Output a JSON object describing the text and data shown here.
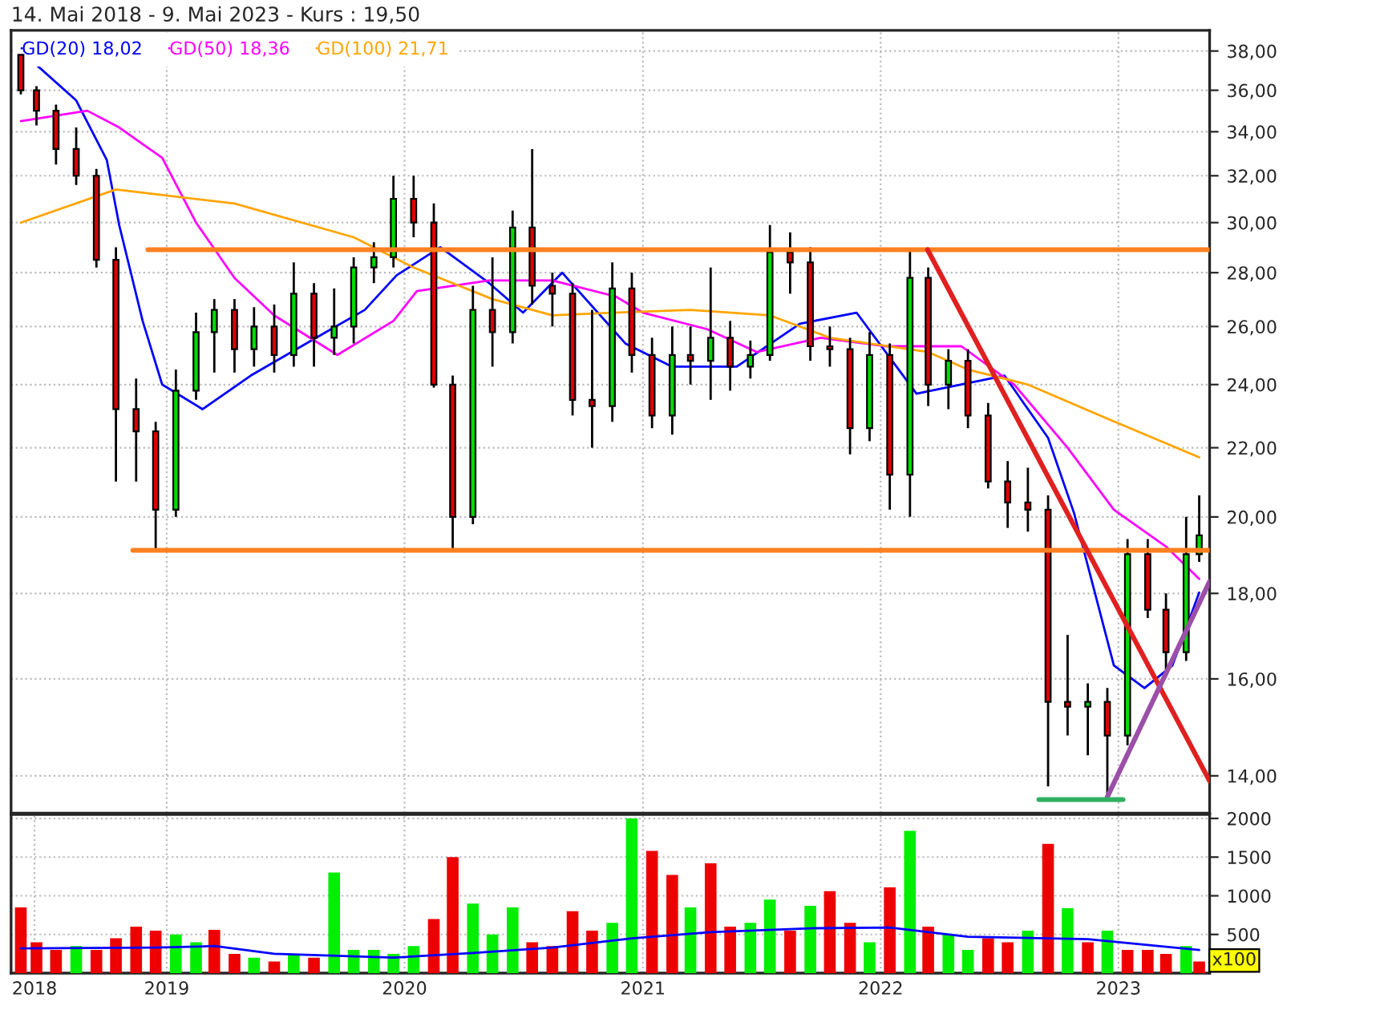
{
  "chart_data": [
    {
      "type": "candlestick",
      "title": "14. Mai 2018 - 9. Mai 2023 - Kurs : 19,50",
      "log": "y",
      "grid": true,
      "legend": "top left",
      "tick_labels": "y",
      "xlim": [
        "2018-05-07",
        "2023-05-21"
      ],
      "xticks": [
        {
          "value": "2019-01-01",
          "label": null
        },
        {
          "value": "2020-01-01",
          "label": null
        },
        {
          "value": "2021-01-01",
          "label": null
        },
        {
          "value": "2022-01-01",
          "label": null
        },
        {
          "value": "2023-01-01",
          "label": null
        }
      ],
      "ylim": [
        13.3,
        39.1
      ],
      "yticks": [
        {
          "value": 14,
          "label": "14,00"
        },
        {
          "value": 16,
          "label": "16,00"
        },
        {
          "value": 18,
          "label": "18,00"
        },
        {
          "value": 20,
          "label": "20,00"
        },
        {
          "value": 22,
          "label": "22,00"
        },
        {
          "value": 24,
          "label": "24,00"
        },
        {
          "value": 26,
          "label": "26,00"
        },
        {
          "value": 28,
          "label": "28,00"
        },
        {
          "value": 30,
          "label": "30,00"
        },
        {
          "value": 32,
          "label": "32,00"
        },
        {
          "value": 34,
          "label": "34,00"
        },
        {
          "value": 36,
          "label": "36,00"
        },
        {
          "value": 38,
          "label": "38,00"
        }
      ],
      "x": [
        "2018-05-22",
        "2018-06-15",
        "2018-07-15",
        "2018-08-15",
        "2018-09-15",
        "2018-10-15",
        "2018-11-15",
        "2018-12-15",
        "2019-01-15",
        "2019-02-15",
        "2019-03-15",
        "2019-04-15",
        "2019-05-15",
        "2019-06-15",
        "2019-07-15",
        "2019-08-15",
        "2019-09-15",
        "2019-10-15",
        "2019-11-15",
        "2019-12-15",
        "2020-01-15",
        "2020-02-15",
        "2020-03-15",
        "2020-04-15",
        "2020-05-15",
        "2020-06-15",
        "2020-07-15",
        "2020-08-15",
        "2020-09-15",
        "2020-10-15",
        "2020-11-15",
        "2020-12-15",
        "2021-01-15",
        "2021-02-15",
        "2021-03-15",
        "2021-04-15",
        "2021-05-15",
        "2021-06-15",
        "2021-07-15",
        "2021-08-15",
        "2021-09-15",
        "2021-10-15",
        "2021-11-15",
        "2021-12-15",
        "2022-01-15",
        "2022-02-15",
        "2022-03-15",
        "2022-04-15",
        "2022-05-15",
        "2022-06-15",
        "2022-07-15",
        "2022-08-15",
        "2022-09-15",
        "2022-10-15",
        "2022-11-15",
        "2022-12-15",
        "2023-01-15",
        "2023-02-15",
        "2023-03-15",
        "2023-04-15",
        "2023-05-05"
      ],
      "ohlc": [
        [
          37.8,
          38.0,
          35.8,
          36.0
        ],
        [
          36.0,
          36.2,
          34.3,
          35.0
        ],
        [
          35.0,
          35.3,
          32.5,
          33.2
        ],
        [
          33.2,
          34.2,
          31.6,
          32.0
        ],
        [
          32.0,
          32.3,
          28.2,
          28.5
        ],
        [
          28.5,
          29.0,
          21.0,
          23.2
        ],
        [
          23.2,
          24.2,
          21.0,
          22.5
        ],
        [
          22.5,
          22.8,
          19.1,
          20.2
        ],
        [
          20.2,
          24.5,
          20.0,
          23.8
        ],
        [
          23.8,
          26.5,
          23.5,
          25.8
        ],
        [
          25.8,
          27.0,
          24.4,
          26.6
        ],
        [
          26.6,
          27.0,
          24.4,
          25.2
        ],
        [
          25.2,
          26.7,
          24.6,
          26.0
        ],
        [
          26.0,
          26.8,
          24.4,
          25.0
        ],
        [
          25.0,
          28.4,
          24.6,
          27.2
        ],
        [
          27.2,
          27.6,
          24.6,
          25.6
        ],
        [
          25.6,
          27.4,
          25.0,
          26.0
        ],
        [
          26.0,
          28.6,
          25.4,
          28.2
        ],
        [
          28.2,
          29.2,
          27.6,
          28.6
        ],
        [
          28.6,
          32.0,
          28.2,
          31.0
        ],
        [
          31.0,
          32.0,
          29.4,
          30.0
        ],
        [
          30.0,
          30.8,
          23.9,
          24.0
        ],
        [
          24.0,
          24.3,
          19.1,
          20.0
        ],
        [
          20.0,
          27.5,
          19.8,
          26.6
        ],
        [
          26.6,
          28.6,
          24.6,
          25.8
        ],
        [
          25.8,
          30.5,
          25.4,
          29.8
        ],
        [
          29.8,
          33.2,
          26.8,
          27.5
        ],
        [
          27.5,
          28.0,
          26.0,
          27.2
        ],
        [
          27.2,
          27.6,
          23.0,
          23.5
        ],
        [
          23.5,
          26.6,
          22.0,
          23.3
        ],
        [
          23.3,
          28.4,
          22.8,
          27.4
        ],
        [
          27.4,
          28.0,
          24.4,
          25.0
        ],
        [
          25.0,
          25.6,
          22.6,
          23.0
        ],
        [
          23.0,
          26.0,
          22.4,
          25.0
        ],
        [
          25.0,
          26.0,
          24.0,
          24.8
        ],
        [
          24.8,
          28.2,
          23.5,
          25.6
        ],
        [
          25.6,
          26.2,
          23.8,
          24.6
        ],
        [
          24.6,
          25.5,
          24.2,
          25.0
        ],
        [
          25.0,
          29.9,
          24.8,
          28.8
        ],
        [
          28.8,
          29.6,
          27.2,
          28.4
        ],
        [
          28.4,
          29.0,
          24.8,
          25.3
        ],
        [
          25.3,
          26.0,
          24.6,
          25.2
        ],
        [
          25.2,
          25.6,
          21.8,
          22.6
        ],
        [
          22.6,
          25.8,
          22.2,
          25.0
        ],
        [
          25.0,
          25.4,
          20.2,
          21.2
        ],
        [
          21.2,
          28.9,
          20.0,
          27.8
        ],
        [
          27.8,
          28.2,
          23.3,
          24.0
        ],
        [
          24.0,
          25.2,
          23.2,
          24.8
        ],
        [
          24.8,
          25.2,
          22.6,
          23.0
        ],
        [
          23.0,
          23.4,
          20.8,
          21.0
        ],
        [
          21.0,
          21.6,
          19.7,
          20.4
        ],
        [
          20.4,
          21.4,
          19.6,
          20.2
        ],
        [
          20.2,
          20.6,
          13.8,
          15.5
        ],
        [
          15.5,
          17.0,
          14.8,
          15.4
        ],
        [
          15.4,
          15.9,
          14.4,
          15.5
        ],
        [
          15.5,
          15.8,
          13.6,
          14.8
        ],
        [
          14.8,
          19.4,
          14.6,
          19.0
        ],
        [
          19.0,
          19.4,
          17.4,
          17.6
        ],
        [
          17.6,
          18.0,
          16.2,
          16.6
        ],
        [
          16.6,
          20.0,
          16.4,
          19.0
        ],
        [
          19.0,
          20.6,
          18.8,
          19.5
        ]
      ],
      "series": [
        {
          "type": "line",
          "name": "GD(20) 18,02",
          "color": "#0000ff",
          "x": [
            "2018-05-22",
            "2018-08-15",
            "2018-10-01",
            "2018-10-20",
            "2018-11-25",
            "2018-12-25",
            "2019-02-25",
            "2019-05-10",
            "2019-09-10",
            "2019-11-01",
            "2019-12-20",
            "2020-02-25",
            "2020-05-10",
            "2020-07-01",
            "2020-08-30",
            "2020-12-05",
            "2021-02-15",
            "2021-05-25",
            "2021-08-30",
            "2021-11-25",
            "2022-02-25",
            "2022-07-10",
            "2022-09-15",
            "2022-10-25",
            "2022-12-25",
            "2023-02-10",
            "2023-03-25",
            "2023-05-05"
          ],
          "values": [
            38.0,
            35.5,
            32.7,
            29.9,
            26.2,
            24.0,
            23.2,
            24.3,
            25.9,
            26.6,
            27.9,
            29.0,
            27.6,
            26.5,
            28.0,
            25.4,
            24.6,
            24.6,
            26.1,
            26.5,
            23.7,
            24.3,
            22.3,
            20.1,
            16.3,
            15.8,
            16.3,
            18.02
          ]
        },
        {
          "type": "line",
          "name": "GD(50) 18,36",
          "color": "#ff00ff",
          "x": [
            "2018-05-22",
            "2018-09-01",
            "2018-10-20",
            "2018-12-25",
            "2019-02-15",
            "2019-04-15",
            "2019-06-15",
            "2019-09-20",
            "2019-12-15",
            "2020-01-20",
            "2020-05-10",
            "2020-08-15",
            "2020-11-20",
            "2021-01-01",
            "2021-04-10",
            "2021-06-25",
            "2021-10-01",
            "2022-01-10",
            "2022-05-05",
            "2022-07-25",
            "2022-10-15",
            "2022-12-25",
            "2023-03-15",
            "2023-05-05"
          ],
          "values": [
            34.5,
            35.0,
            34.2,
            32.8,
            30.0,
            27.8,
            26.4,
            25.0,
            26.2,
            27.3,
            27.7,
            27.7,
            27.1,
            26.5,
            25.9,
            25.1,
            25.6,
            25.3,
            25.3,
            24.0,
            22.0,
            20.2,
            19.2,
            18.36
          ]
        },
        {
          "type": "line",
          "name": "GD(100) 21,71",
          "color": "#ffa500",
          "x": [
            "2018-05-22",
            "2018-10-15",
            "2019-04-15",
            "2019-10-15",
            "2020-01-15",
            "2020-05-15",
            "2020-08-15",
            "2020-11-15",
            "2021-03-15",
            "2021-07-15",
            "2021-10-15",
            "2022-03-15",
            "2022-05-15",
            "2022-08-15",
            "2022-12-15",
            "2023-05-05"
          ],
          "values": [
            30.0,
            31.4,
            30.8,
            29.4,
            28.2,
            27.0,
            26.4,
            26.5,
            26.6,
            26.4,
            25.6,
            25.1,
            24.5,
            24.0,
            22.9,
            21.71
          ]
        },
        {
          "type": "line",
          "color": "#ff8020",
          "x": [
            "2018-12-03",
            "2023-05-21"
          ],
          "values": [
            28.9,
            28.9
          ]
        },
        {
          "type": "line",
          "color": "#ff8020",
          "x": [
            "2018-11-10",
            "2023-05-21"
          ],
          "values": [
            19.1,
            19.1
          ]
        },
        {
          "type": "line",
          "color": "#e02020",
          "x": [
            "2022-03-14",
            "2023-05-21"
          ],
          "values": [
            28.9,
            13.9
          ]
        },
        {
          "type": "line",
          "color": "#9b4fa8",
          "x": [
            "2022-12-15",
            "2023-05-21"
          ],
          "values": [
            13.6,
            18.3
          ]
        },
        {
          "type": "line",
          "color": "#30b060",
          "x": [
            "2022-09-01",
            "2023-01-08"
          ],
          "values": [
            13.55,
            13.55
          ]
        }
      ]
    },
    {
      "type": "bar",
      "grid": true,
      "annotations": [
        "x100"
      ],
      "xlim": [
        "2018-05-07",
        "2023-05-21"
      ],
      "xticks": [
        {
          "value": "2018-06-12",
          "label": "2018"
        },
        {
          "value": "2019-01-01",
          "label": "2019"
        },
        {
          "value": "2020-01-01",
          "label": "2020"
        },
        {
          "value": "2021-01-01",
          "label": "2021"
        },
        {
          "value": "2022-01-01",
          "label": "2022"
        },
        {
          "value": "2023-01-01",
          "label": "2023"
        }
      ],
      "ylim": [
        0,
        2050
      ],
      "yticks": [
        500,
        1000,
        1500,
        2000
      ],
      "x": [
        "2018-05-22",
        "2018-06-15",
        "2018-07-15",
        "2018-08-15",
        "2018-09-15",
        "2018-10-15",
        "2018-11-15",
        "2018-12-15",
        "2019-01-15",
        "2019-02-15",
        "2019-03-15",
        "2019-04-15",
        "2019-05-15",
        "2019-06-15",
        "2019-07-15",
        "2019-08-15",
        "2019-09-15",
        "2019-10-15",
        "2019-11-15",
        "2019-12-15",
        "2020-01-15",
        "2020-02-15",
        "2020-03-15",
        "2020-04-15",
        "2020-05-15",
        "2020-06-15",
        "2020-07-15",
        "2020-08-15",
        "2020-09-15",
        "2020-10-15",
        "2020-11-15",
        "2020-12-15",
        "2021-01-15",
        "2021-02-15",
        "2021-03-15",
        "2021-04-15",
        "2021-05-15",
        "2021-06-15",
        "2021-07-15",
        "2021-08-15",
        "2021-09-15",
        "2021-10-15",
        "2021-11-15",
        "2021-12-15",
        "2022-01-15",
        "2022-02-15",
        "2022-03-15",
        "2022-04-15",
        "2022-05-15",
        "2022-06-15",
        "2022-07-15",
        "2022-08-15",
        "2022-09-15",
        "2022-10-15",
        "2022-11-15",
        "2022-12-15",
        "2023-01-15",
        "2023-02-15",
        "2023-03-15",
        "2023-04-15",
        "2023-05-05"
      ],
      "values": [
        850,
        400,
        300,
        350,
        300,
        450,
        600,
        550,
        500,
        400,
        560,
        250,
        200,
        150,
        250,
        200,
        1300,
        300,
        300,
        250,
        350,
        700,
        1500,
        900,
        500,
        850,
        400,
        350,
        800,
        550,
        650,
        2000,
        1580,
        1270,
        850,
        1420,
        600,
        650,
        950,
        550,
        870,
        1060,
        650,
        400,
        1110,
        1840,
        600,
        500,
        300,
        450,
        400,
        550,
        1670,
        840,
        400,
        550,
        300,
        300,
        250,
        350,
        150
      ],
      "colors": [
        "#ee0000",
        "#ee0000",
        "#ee0000",
        "#00ee00",
        "#ee0000",
        "#ee0000",
        "#ee0000",
        "#ee0000",
        "#00ee00",
        "#00ee00",
        "#ee0000",
        "#ee0000",
        "#00ee00",
        "#ee0000",
        "#00ee00",
        "#ee0000",
        "#00ee00",
        "#00ee00",
        "#00ee00",
        "#00ee00",
        "#00ee00",
        "#ee0000",
        "#ee0000",
        "#00ee00",
        "#00ee00",
        "#00ee00",
        "#ee0000",
        "#ee0000",
        "#ee0000",
        "#ee0000",
        "#00ee00",
        "#00ee00",
        "#ee0000",
        "#ee0000",
        "#00ee00",
        "#ee0000",
        "#ee0000",
        "#00ee00",
        "#00ee00",
        "#ee0000",
        "#00ee00",
        "#ee0000",
        "#ee0000",
        "#00ee00",
        "#ee0000",
        "#00ee00",
        "#ee0000",
        "#00ee00",
        "#00ee00",
        "#ee0000",
        "#ee0000",
        "#00ee00",
        "#ee0000",
        "#00ee00",
        "#ee0000",
        "#00ee00",
        "#ee0000",
        "#ee0000",
        "#ee0000",
        "#00ee00",
        "#ee0000"
      ],
      "series": [
        {
          "type": "line",
          "color": "#0000ff",
          "x": [
            "2018-05-22",
            "2018-12-15",
            "2019-03-15",
            "2019-06-15",
            "2019-12-15",
            "2020-04-15",
            "2020-08-15",
            "2020-12-15",
            "2021-04-15",
            "2021-09-15",
            "2022-01-15",
            "2022-05-15",
            "2022-11-15",
            "2023-05-05"
          ],
          "values": [
            320,
            330,
            350,
            250,
            200,
            260,
            330,
            450,
            530,
            580,
            590,
            470,
            440,
            300
          ]
        }
      ]
    }
  ]
}
